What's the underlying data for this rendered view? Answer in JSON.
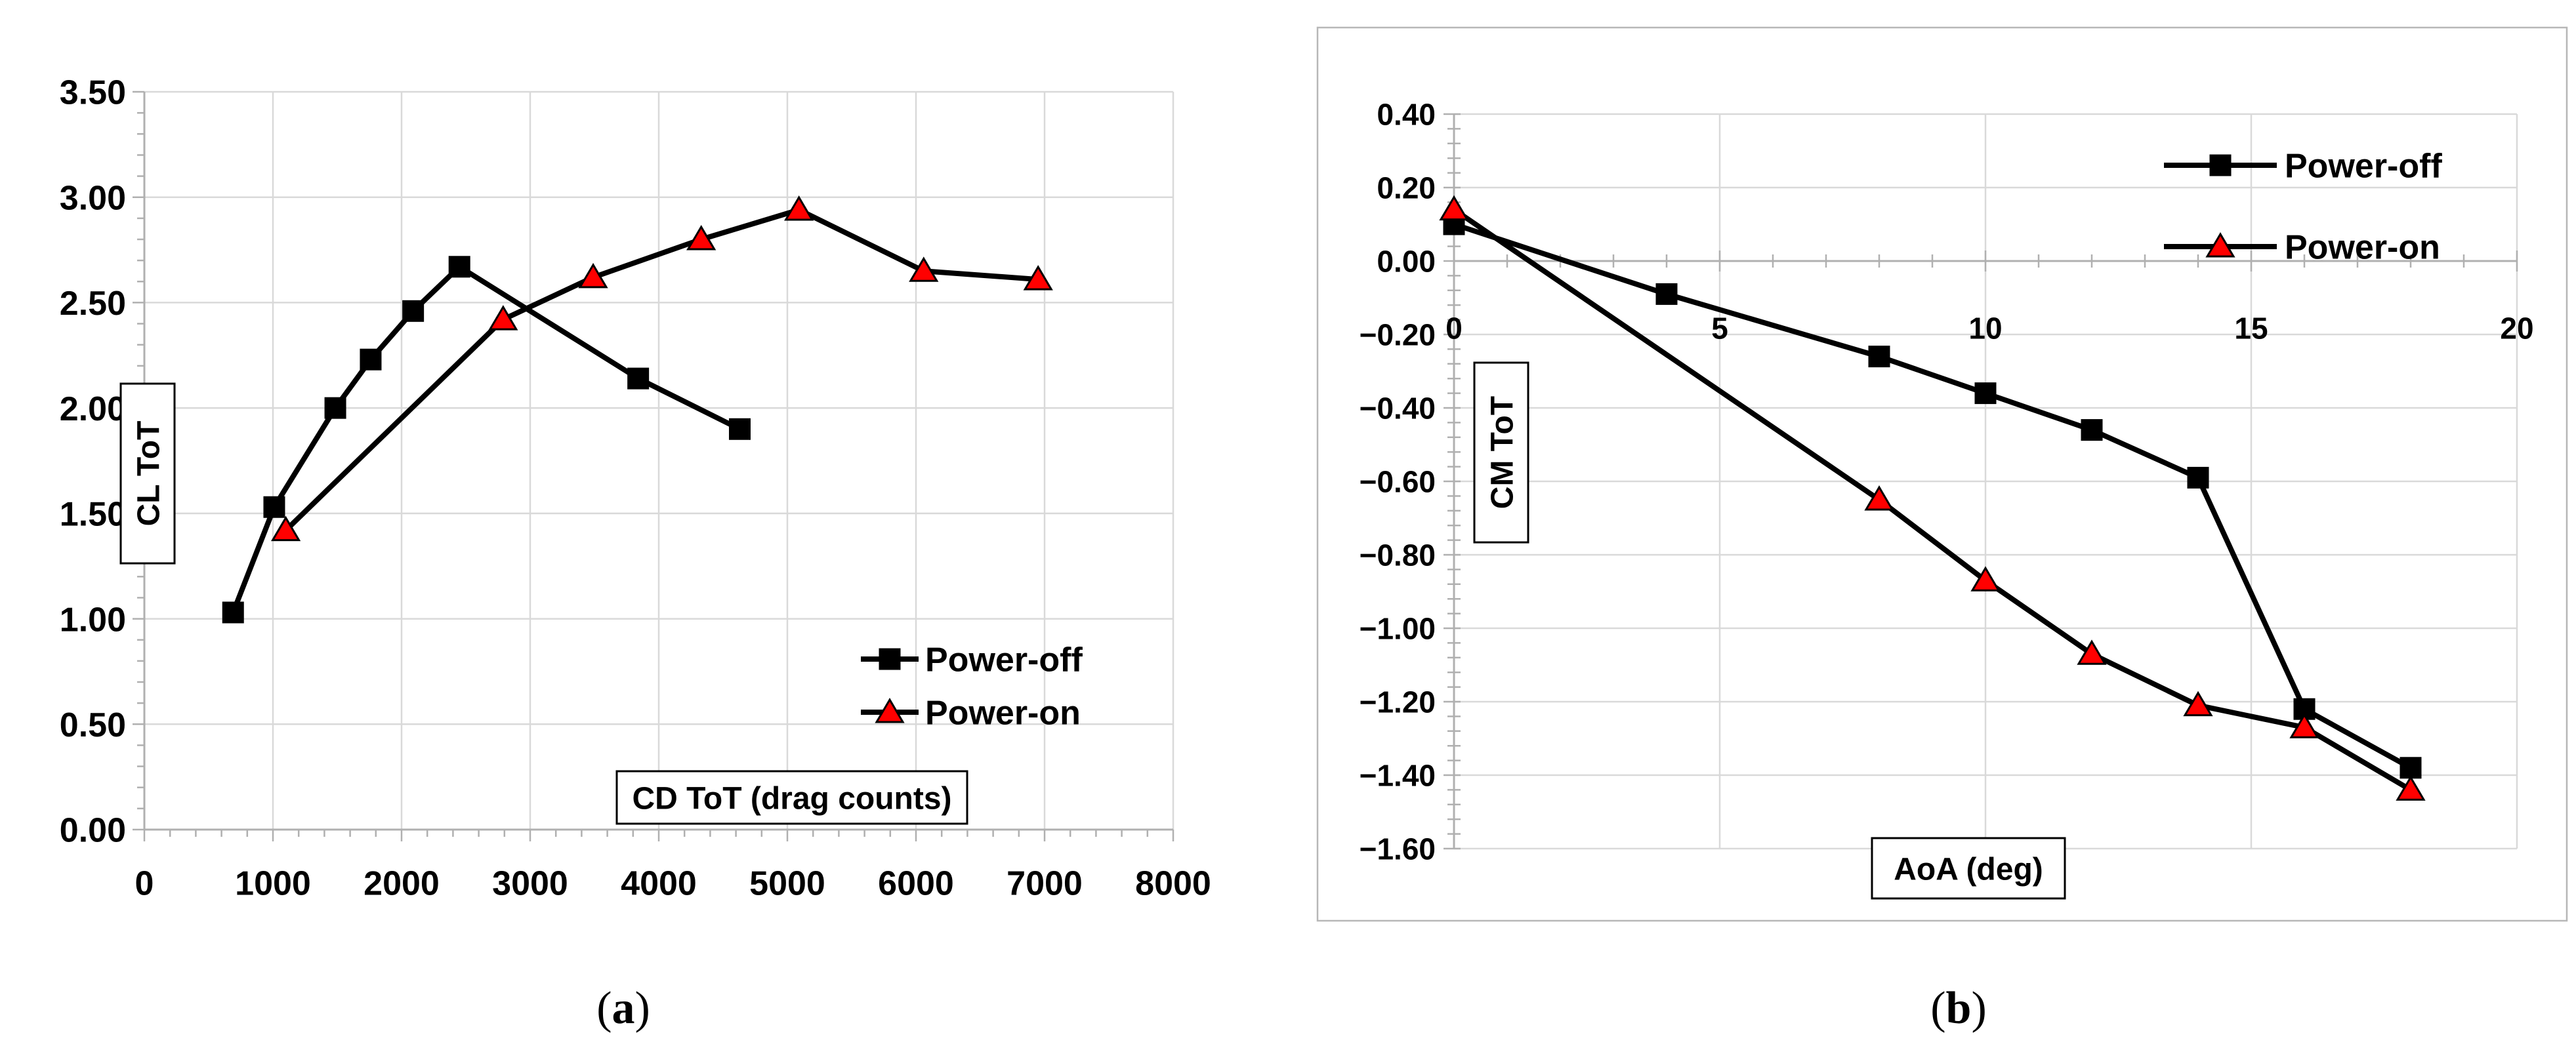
{
  "figure": {
    "background": "#ffffff"
  },
  "captions": {
    "a": {
      "open": "(",
      "letter": "a",
      "close": ")"
    },
    "b": {
      "open": "(",
      "letter": "b",
      "close": ")"
    }
  },
  "colors": {
    "grid": "#d9d9d9",
    "axis": "#b0b0b0",
    "panel_border": "#b7b7b7",
    "text": "#000000",
    "series_black": "#000000",
    "series_red": "#ff0000"
  },
  "chart_data": [
    {
      "panel": "a",
      "type": "line",
      "xlabel": "CD ToT (drag counts)",
      "ylabel": "CL ToT",
      "xlim": [
        0,
        8000
      ],
      "ylim": [
        0,
        3.5
      ],
      "x_major": 1000,
      "x_minor": 200,
      "y_major": 0.5,
      "y_minor": 0.1,
      "grid": true,
      "legend_position": "inside-lower-right",
      "x_ticks": [
        {
          "v": 0,
          "label": "0"
        },
        {
          "v": 1000,
          "label": "1000"
        },
        {
          "v": 2000,
          "label": "2000"
        },
        {
          "v": 3000,
          "label": "3000"
        },
        {
          "v": 4000,
          "label": "4000"
        },
        {
          "v": 5000,
          "label": "5000"
        },
        {
          "v": 6000,
          "label": "6000"
        },
        {
          "v": 7000,
          "label": "7000"
        },
        {
          "v": 8000,
          "label": "8000"
        }
      ],
      "y_ticks": [
        {
          "v": 0,
          "label": "0.00"
        },
        {
          "v": 0.5,
          "label": "0.50"
        },
        {
          "v": 1,
          "label": "1.00"
        },
        {
          "v": 1.5,
          "label": "1.50"
        },
        {
          "v": 2,
          "label": "2.00"
        },
        {
          "v": 2.5,
          "label": "2.50"
        },
        {
          "v": 3,
          "label": "3.00"
        },
        {
          "v": 3.5,
          "label": "3.50"
        }
      ],
      "series": [
        {
          "name": "Power-off",
          "marker": "square",
          "line_color": "#000000",
          "marker_color": "#000000",
          "points": [
            [
              690,
              1.03
            ],
            [
              1010,
              1.53
            ],
            [
              1485,
              2.0
            ],
            [
              1760,
              2.23
            ],
            [
              2090,
              2.46
            ],
            [
              2450,
              2.67
            ],
            [
              3840,
              2.14
            ],
            [
              4630,
              1.9
            ]
          ]
        },
        {
          "name": "Power-on",
          "marker": "triangle",
          "line_color": "#000000",
          "marker_color": "#ff0000",
          "marker_outline": "#000000",
          "points": [
            [
              1100,
              1.42
            ],
            [
              2790,
              2.42
            ],
            [
              3490,
              2.62
            ],
            [
              4330,
              2.8
            ],
            [
              5090,
              2.94
            ],
            [
              6060,
              2.65
            ],
            [
              6950,
              2.61
            ]
          ]
        }
      ]
    },
    {
      "panel": "b",
      "type": "line",
      "xlabel": "AoA (deg)",
      "ylabel": "CM ToT",
      "xlim": [
        0,
        20
      ],
      "ylim": [
        -1.6,
        0.4
      ],
      "x_major": 5,
      "x_minor": 1,
      "y_major": 0.2,
      "y_minor": 0.04,
      "grid": true,
      "legend_position": "inside-upper-right",
      "x_ticks": [
        {
          "v": 0,
          "label": "0"
        },
        {
          "v": 5,
          "label": "5"
        },
        {
          "v": 10,
          "label": "10"
        },
        {
          "v": 15,
          "label": "15"
        },
        {
          "v": 20,
          "label": "20"
        }
      ],
      "y_ticks": [
        {
          "v": 0.4,
          "label": "0.40"
        },
        {
          "v": 0.2,
          "label": "0.20"
        },
        {
          "v": 0,
          "label": "0.00"
        },
        {
          "v": -0.2,
          "label": "−0.20"
        },
        {
          "v": -0.4,
          "label": "−0.40"
        },
        {
          "v": -0.6,
          "label": "−0.60"
        },
        {
          "v": -0.8,
          "label": "−0.80"
        },
        {
          "v": -1,
          "label": "−1.00"
        },
        {
          "v": -1.2,
          "label": "−1.20"
        },
        {
          "v": -1.4,
          "label": "−1.40"
        },
        {
          "v": -1.6,
          "label": "−1.60"
        }
      ],
      "series": [
        {
          "name": "Power-off",
          "marker": "square",
          "line_color": "#000000",
          "marker_color": "#000000",
          "points": [
            [
              0,
              0.1
            ],
            [
              4,
              -0.09
            ],
            [
              8,
              -0.26
            ],
            [
              10,
              -0.36
            ],
            [
              12,
              -0.46
            ],
            [
              14,
              -0.59
            ],
            [
              16,
              -1.22
            ],
            [
              18,
              -1.38
            ]
          ]
        },
        {
          "name": "Power-on",
          "marker": "triangle",
          "line_color": "#000000",
          "marker_color": "#ff0000",
          "marker_outline": "#000000",
          "points": [
            [
              0,
              0.14
            ],
            [
              8,
              -0.65
            ],
            [
              10,
              -0.87
            ],
            [
              12,
              -1.07
            ],
            [
              14,
              -1.21
            ],
            [
              16,
              -1.27
            ],
            [
              18,
              -1.44
            ]
          ]
        }
      ]
    }
  ]
}
